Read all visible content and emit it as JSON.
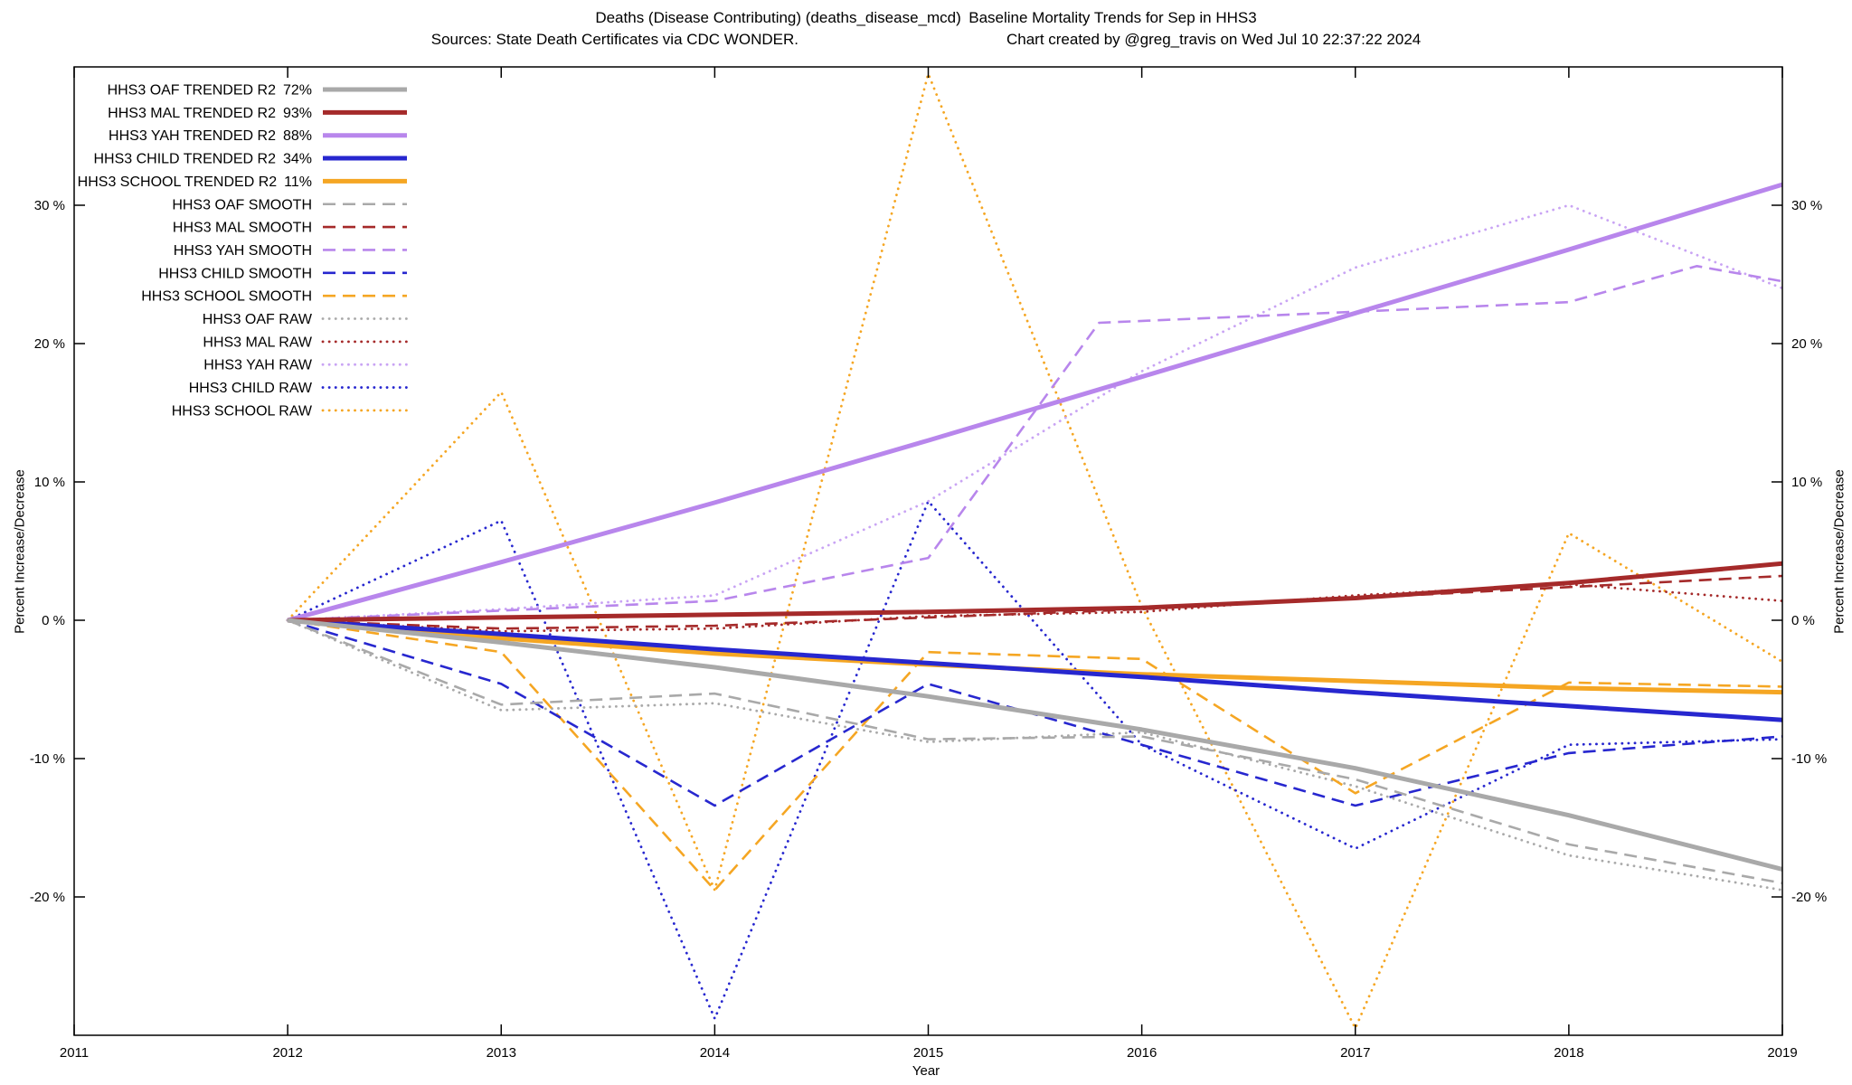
{
  "title": {
    "line1": "Deaths (Disease Contributing) (deaths_disease_mcd) Baseline Mortality Trends for Sep in HHS3",
    "sources": "Sources: State Death Certificates via CDC WONDER.",
    "credit": "Chart created by @greg_travis on Wed Jul 10 22:37:22 2024"
  },
  "chart_data": {
    "type": "line",
    "title": "Deaths (Disease Contributing) (deaths_disease_mcd) Baseline Mortality Trends for Sep in HHS3",
    "xlabel": "Year",
    "ylabel_left": "Percent Increase/Decrease",
    "ylabel_right": "Percent Increase/Decrease",
    "xlim": [
      2011,
      2019
    ],
    "ylim": [
      -30,
      40
    ],
    "xticks": [
      2011,
      2012,
      2013,
      2014,
      2015,
      2016,
      2017,
      2018,
      2019
    ],
    "yticks": [
      -20,
      -10,
      0,
      10,
      20,
      30
    ],
    "ytick_suffix": " %",
    "grid": false,
    "legend_position": "top-left-inside",
    "series": [
      {
        "id": "hhs3-oaf-trended",
        "label": "HHS3 OAF TRENDED R2",
        "value": "72%",
        "style": "trended",
        "color": "#a9a9a9",
        "points": [
          [
            2012,
            0
          ],
          [
            2013,
            -1.6
          ],
          [
            2014,
            -3.4
          ],
          [
            2015,
            -5.5
          ],
          [
            2016,
            -7.9
          ],
          [
            2017,
            -10.7
          ],
          [
            2018,
            -14.1
          ],
          [
            2019,
            -18
          ]
        ]
      },
      {
        "id": "hhs3-mal-trended",
        "label": "HHS3 MAL TRENDED R2",
        "value": "93%",
        "style": "trended",
        "color": "#a52a2a",
        "points": [
          [
            2012,
            0
          ],
          [
            2013,
            0.2
          ],
          [
            2014,
            0.4
          ],
          [
            2015,
            0.6
          ],
          [
            2016,
            0.9
          ],
          [
            2017,
            1.6
          ],
          [
            2018,
            2.7
          ],
          [
            2019,
            4.1
          ]
        ]
      },
      {
        "id": "hhs3-yah-trended",
        "label": "HHS3 YAH TRENDED R2",
        "value": "88%",
        "style": "trended",
        "color": "#b886ec",
        "points": [
          [
            2012,
            0
          ],
          [
            2013,
            4.2
          ],
          [
            2014,
            8.5
          ],
          [
            2015,
            13
          ],
          [
            2016,
            17.6
          ],
          [
            2017,
            22.2
          ],
          [
            2018,
            26.8
          ],
          [
            2019,
            31.5
          ]
        ]
      },
      {
        "id": "hhs3-child-trended",
        "label": "HHS3 CHILD TRENDED R2",
        "value": "34%",
        "style": "trended",
        "color": "#2727cf",
        "points": [
          [
            2012,
            0
          ],
          [
            2013,
            -1
          ],
          [
            2014,
            -2.1
          ],
          [
            2015,
            -3.1
          ],
          [
            2016,
            -4.1
          ],
          [
            2017,
            -5.2
          ],
          [
            2018,
            -6.2
          ],
          [
            2019,
            -7.2
          ]
        ]
      },
      {
        "id": "hhs3-school-trended",
        "label": "HHS3 SCHOOL TRENDED R2",
        "value": "11%",
        "style": "trended",
        "color": "#f5a623",
        "points": [
          [
            2012,
            0
          ],
          [
            2013,
            -1.3
          ],
          [
            2014,
            -2.4
          ],
          [
            2015,
            -3.2
          ],
          [
            2016,
            -3.9
          ],
          [
            2017,
            -4.4
          ],
          [
            2018,
            -4.9
          ],
          [
            2019,
            -5.2
          ]
        ]
      },
      {
        "id": "hhs3-oaf-smooth",
        "label": "HHS3 OAF SMOOTH",
        "value": "",
        "style": "smooth",
        "color": "#a9a9a9",
        "points": [
          [
            2012,
            0
          ],
          [
            2013,
            -6.1
          ],
          [
            2014,
            -5.3
          ],
          [
            2015,
            -8.6
          ],
          [
            2016,
            -8.4
          ],
          [
            2017,
            -11.5
          ],
          [
            2018,
            -16.2
          ],
          [
            2019,
            -19
          ]
        ]
      },
      {
        "id": "hhs3-mal-smooth",
        "label": "HHS3 MAL SMOOTH",
        "value": "",
        "style": "smooth",
        "color": "#a52a2a",
        "points": [
          [
            2012,
            0
          ],
          [
            2013,
            -0.6
          ],
          [
            2014,
            -0.4
          ],
          [
            2015,
            0.2
          ],
          [
            2016,
            0.8
          ],
          [
            2017,
            1.6
          ],
          [
            2018,
            2.4
          ],
          [
            2019,
            3.2
          ]
        ]
      },
      {
        "id": "hhs3-yah-smooth",
        "label": "HHS3 YAH SMOOTH",
        "value": "",
        "style": "smooth",
        "color": "#b886ec",
        "points": [
          [
            2012,
            0
          ],
          [
            2013,
            0.7
          ],
          [
            2014,
            1.4
          ],
          [
            2015,
            4.5
          ],
          [
            2015.8,
            21.5
          ],
          [
            2017,
            22.3
          ],
          [
            2018,
            23
          ],
          [
            2018.6,
            25.6
          ],
          [
            2019,
            24.5
          ]
        ]
      },
      {
        "id": "hhs3-child-smooth",
        "label": "HHS3 CHILD SMOOTH",
        "value": "",
        "style": "smooth",
        "color": "#2727cf",
        "points": [
          [
            2012,
            0
          ],
          [
            2013,
            -4.6
          ],
          [
            2014,
            -13.4
          ],
          [
            2015,
            -4.6
          ],
          [
            2016,
            -9
          ],
          [
            2017,
            -13.4
          ],
          [
            2018,
            -9.6
          ],
          [
            2019,
            -8.4
          ]
        ]
      },
      {
        "id": "hhs3-school-smooth",
        "label": "HHS3 SCHOOL SMOOTH",
        "value": "",
        "style": "smooth",
        "color": "#f5a623",
        "points": [
          [
            2012,
            0
          ],
          [
            2013,
            -2.3
          ],
          [
            2014,
            -19.5
          ],
          [
            2015,
            -2.3
          ],
          [
            2016,
            -2.8
          ],
          [
            2017,
            -12.5
          ],
          [
            2018,
            -4.5
          ],
          [
            2019,
            -4.8
          ]
        ]
      },
      {
        "id": "hhs3-oaf-raw",
        "label": "HHS3 OAF RAW",
        "value": "",
        "style": "raw",
        "color": "#a9a9a9",
        "points": [
          [
            2012,
            0
          ],
          [
            2013,
            -6.5
          ],
          [
            2014,
            -6
          ],
          [
            2015,
            -8.8
          ],
          [
            2016,
            -8.1
          ],
          [
            2017,
            -12
          ],
          [
            2018,
            -17
          ],
          [
            2019,
            -19.5
          ]
        ]
      },
      {
        "id": "hhs3-mal-raw",
        "label": "HHS3 MAL RAW",
        "value": "",
        "style": "raw",
        "color": "#a52a2a",
        "points": [
          [
            2012,
            0
          ],
          [
            2013,
            -0.8
          ],
          [
            2014,
            -0.6
          ],
          [
            2015,
            0.3
          ],
          [
            2016,
            0.6
          ],
          [
            2017,
            1.8
          ],
          [
            2018,
            2.6
          ],
          [
            2019,
            1.4
          ]
        ]
      },
      {
        "id": "hhs3-yah-raw",
        "label": "HHS3 YAH RAW",
        "value": "",
        "style": "raw",
        "color": "#c9a4f4",
        "points": [
          [
            2012,
            0
          ],
          [
            2013,
            0.8
          ],
          [
            2014,
            1.8
          ],
          [
            2015,
            8.6
          ],
          [
            2016,
            18
          ],
          [
            2017,
            25.5
          ],
          [
            2018,
            30
          ],
          [
            2019,
            24
          ]
        ]
      },
      {
        "id": "hhs3-child-raw",
        "label": "HHS3 CHILD RAW",
        "value": "",
        "style": "raw",
        "color": "#2727cf",
        "points": [
          [
            2012,
            0
          ],
          [
            2013,
            7.2
          ],
          [
            2014,
            -28.8
          ],
          [
            2015,
            8.6
          ],
          [
            2016,
            -9
          ],
          [
            2017,
            -16.5
          ],
          [
            2018,
            -9
          ],
          [
            2019,
            -8.6
          ]
        ]
      },
      {
        "id": "hhs3-school-raw",
        "label": "HHS3 SCHOOL RAW",
        "value": "",
        "style": "raw",
        "color": "#f5a623",
        "points": [
          [
            2012,
            0
          ],
          [
            2013,
            16.5
          ],
          [
            2014,
            -19.5
          ],
          [
            2015,
            39.5
          ],
          [
            2016,
            1
          ],
          [
            2017,
            -29.5
          ],
          [
            2018,
            6.3
          ],
          [
            2019,
            -3
          ]
        ]
      }
    ]
  }
}
